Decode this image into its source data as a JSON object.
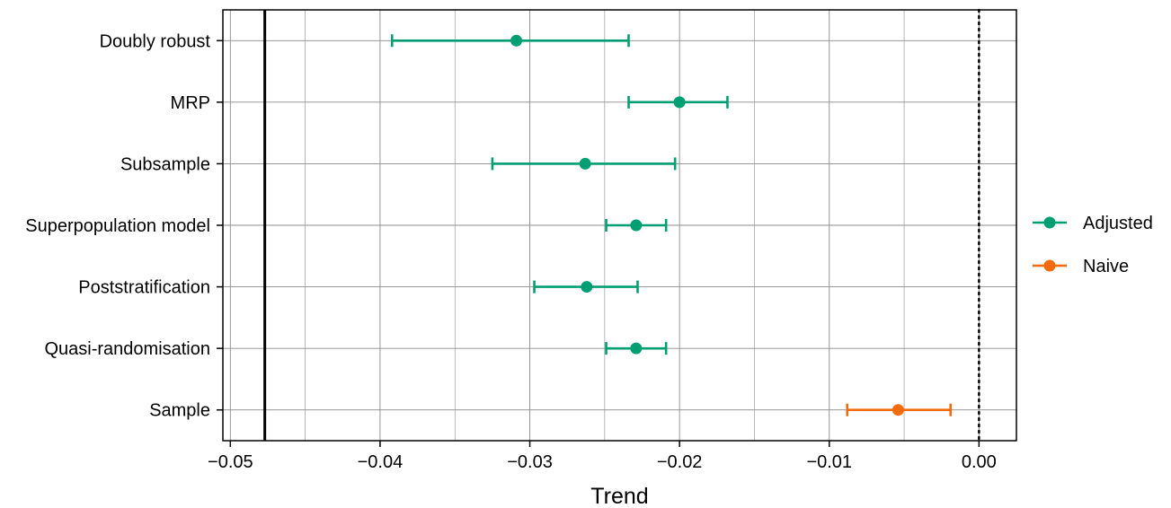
{
  "chart_data": {
    "type": "scatter",
    "subtype": "forest-plot-with-error-bars",
    "title": "",
    "xlabel": "Trend",
    "ylabel": "",
    "xlim": [
      -0.0505,
      0.0025
    ],
    "x_ticks": [
      -0.05,
      -0.04,
      -0.03,
      -0.02,
      -0.01,
      0.0
    ],
    "x_tick_labels": [
      "−0.05",
      "−0.04",
      "−0.03",
      "−0.02",
      "−0.01",
      "0.00"
    ],
    "categories": [
      "Doubly robust",
      "MRP",
      "Subsample",
      "Superpopulation model",
      "Poststratification",
      "Quasi-randomisation",
      "Sample"
    ],
    "series": [
      {
        "name": "Adjusted",
        "color": "#009e73",
        "points": [
          {
            "category": "Doubly robust",
            "estimate": -0.0309,
            "lower": -0.0392,
            "upper": -0.0234
          },
          {
            "category": "MRP",
            "estimate": -0.02,
            "lower": -0.0234,
            "upper": -0.0168
          },
          {
            "category": "Subsample",
            "estimate": -0.0263,
            "lower": -0.0325,
            "upper": -0.0203
          },
          {
            "category": "Superpopulation model",
            "estimate": -0.0229,
            "lower": -0.0249,
            "upper": -0.0209
          },
          {
            "category": "Poststratification",
            "estimate": -0.0262,
            "lower": -0.0297,
            "upper": -0.0228
          },
          {
            "category": "Quasi-randomisation",
            "estimate": -0.0229,
            "lower": -0.0249,
            "upper": -0.0209
          }
        ]
      },
      {
        "name": "Naive",
        "color": "#f26b0f",
        "points": [
          {
            "category": "Sample",
            "estimate": -0.0054,
            "lower": -0.0088,
            "upper": -0.0019
          }
        ]
      }
    ],
    "reference_lines": [
      {
        "x": -0.0477,
        "style": "solid"
      },
      {
        "x": 0.0,
        "style": "dotted"
      }
    ],
    "grid": true,
    "legend_position": "right"
  }
}
